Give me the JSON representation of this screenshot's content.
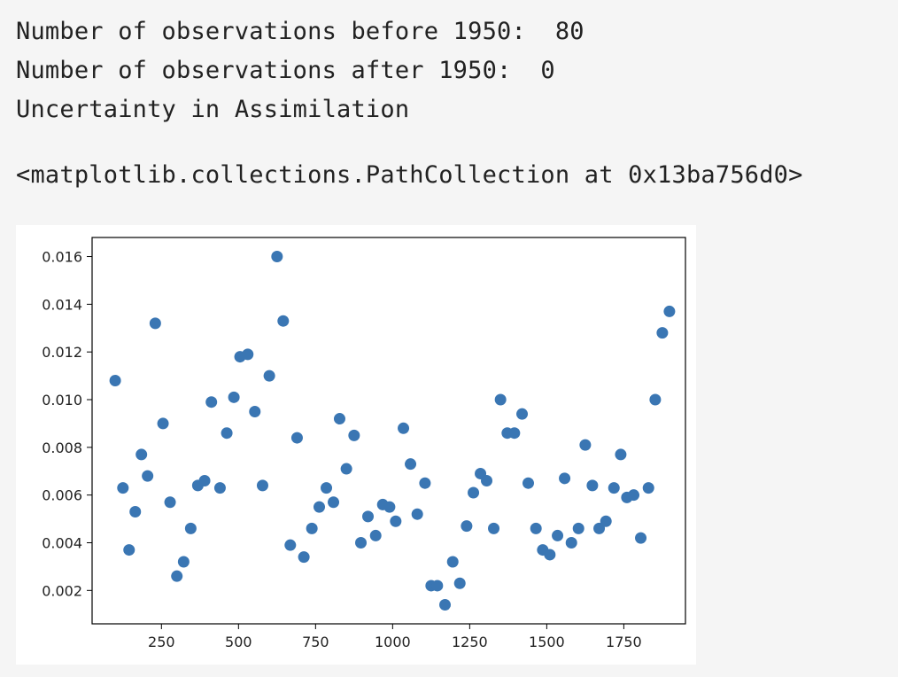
{
  "output_lines": [
    "Number of observations before 1950:  80",
    "Number of observations after 1950:  0",
    "Uncertainty in Assimilation"
  ],
  "repr_text": "<matplotlib.collections.PathCollection at 0x13ba756d0>",
  "chart_data": {
    "type": "scatter",
    "title": "",
    "xlabel": "",
    "ylabel": "",
    "xlim": [
      25,
      1950
    ],
    "ylim": [
      0.0006,
      0.0168
    ],
    "xticks": [
      250,
      500,
      750,
      1000,
      1250,
      1500,
      1750
    ],
    "xtick_labels": [
      "250",
      "500",
      "750",
      "1000",
      "1250",
      "1500",
      "1750"
    ],
    "yticks": [
      0.002,
      0.004,
      0.006,
      0.008,
      0.01,
      0.012,
      0.014,
      0.016
    ],
    "ytick_labels": [
      "0.002",
      "0.004",
      "0.006",
      "0.008",
      "0.010",
      "0.012",
      "0.014",
      "0.016"
    ],
    "grid": false,
    "marker_color": "#3a76b3",
    "points": [
      [
        100,
        0.0108
      ],
      [
        125,
        0.0063
      ],
      [
        145,
        0.0037
      ],
      [
        165,
        0.0053
      ],
      [
        185,
        0.0077
      ],
      [
        205,
        0.0068
      ],
      [
        230,
        0.0132
      ],
      [
        255,
        0.009
      ],
      [
        278,
        0.0057
      ],
      [
        300,
        0.0026
      ],
      [
        322,
        0.0032
      ],
      [
        345,
        0.0046
      ],
      [
        368,
        0.0064
      ],
      [
        390,
        0.0066
      ],
      [
        412,
        0.0099
      ],
      [
        440,
        0.0063
      ],
      [
        462,
        0.0086
      ],
      [
        485,
        0.0101
      ],
      [
        505,
        0.0118
      ],
      [
        530,
        0.0119
      ],
      [
        553,
        0.0095
      ],
      [
        578,
        0.0064
      ],
      [
        600,
        0.011
      ],
      [
        625,
        0.016
      ],
      [
        645,
        0.0133
      ],
      [
        668,
        0.0039
      ],
      [
        690,
        0.0084
      ],
      [
        712,
        0.0034
      ],
      [
        738,
        0.0046
      ],
      [
        762,
        0.0055
      ],
      [
        785,
        0.0063
      ],
      [
        808,
        0.0057
      ],
      [
        828,
        0.0092
      ],
      [
        850,
        0.0071
      ],
      [
        875,
        0.0085
      ],
      [
        897,
        0.004
      ],
      [
        920,
        0.0051
      ],
      [
        945,
        0.0043
      ],
      [
        968,
        0.0056
      ],
      [
        990,
        0.0055
      ],
      [
        1010,
        0.0049
      ],
      [
        1035,
        0.0088
      ],
      [
        1058,
        0.0073
      ],
      [
        1080,
        0.0052
      ],
      [
        1105,
        0.0065
      ],
      [
        1125,
        0.0022
      ],
      [
        1145,
        0.0022
      ],
      [
        1170,
        0.0014
      ],
      [
        1195,
        0.0032
      ],
      [
        1218,
        0.0023
      ],
      [
        1240,
        0.0047
      ],
      [
        1262,
        0.0061
      ],
      [
        1285,
        0.0069
      ],
      [
        1305,
        0.0066
      ],
      [
        1328,
        0.0046
      ],
      [
        1350,
        0.01
      ],
      [
        1372,
        0.0086
      ],
      [
        1395,
        0.0086
      ],
      [
        1420,
        0.0094
      ],
      [
        1440,
        0.0065
      ],
      [
        1465,
        0.0046
      ],
      [
        1487,
        0.0037
      ],
      [
        1510,
        0.0035
      ],
      [
        1535,
        0.0043
      ],
      [
        1558,
        0.0067
      ],
      [
        1580,
        0.004
      ],
      [
        1603,
        0.0046
      ],
      [
        1625,
        0.0081
      ],
      [
        1648,
        0.0064
      ],
      [
        1670,
        0.0046
      ],
      [
        1692,
        0.0049
      ],
      [
        1718,
        0.0063
      ],
      [
        1740,
        0.0077
      ],
      [
        1760,
        0.0059
      ],
      [
        1782,
        0.006
      ],
      [
        1805,
        0.0042
      ],
      [
        1830,
        0.0063
      ],
      [
        1852,
        0.01
      ],
      [
        1875,
        0.0128
      ],
      [
        1898,
        0.0137
      ]
    ]
  }
}
